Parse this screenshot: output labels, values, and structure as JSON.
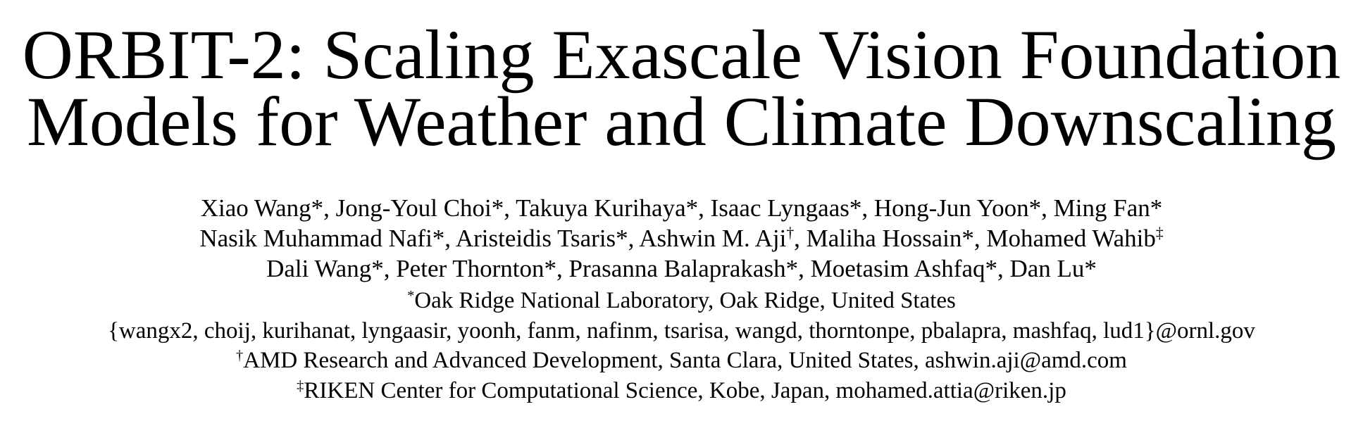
{
  "paper": {
    "title": {
      "line1": "ORBIT-2: Scaling Exascale Vision Foundation",
      "line2": "Models for Weather and Climate Downscaling"
    },
    "authors": {
      "line1": "Xiao Wang*, Jong-Youl Choi*, Takuya Kurihaya*, Isaac Lyngaas*, Hong-Jun Yoon*, Ming Fan*",
      "line2_text": "Nasik Muhammad Nafi*, Aristeidis Tsaris*, Ashwin M. Aji",
      "line2_mark": "†",
      "line2_text2": ", Maliha Hossain*, Mohamed Wahib",
      "line2_mark2": "‡",
      "line3": "Dali Wang*, Peter Thornton*, Prasanna Balaprakash*, Moetasim Ashfaq*, Dan Lu*"
    },
    "affiliations": {
      "ornl_mark": "*",
      "ornl": "Oak Ridge National Laboratory, Oak Ridge, United States",
      "ornl_emails": "{wangx2, choij, kurihanat, lyngaasir, yoonh, fanm, nafinm, tsarisa, wangd, thorntonpe, pbalapra, mashfaq, lud1}@ornl.gov",
      "amd_mark": "†",
      "amd": "AMD Research and Advanced Development, Santa Clara, United States, ashwin.aji@amd.com",
      "riken_mark": "‡",
      "riken": "RIKEN Center for Computational Science, Kobe, Japan, mohamed.attia@riken.jp"
    }
  }
}
